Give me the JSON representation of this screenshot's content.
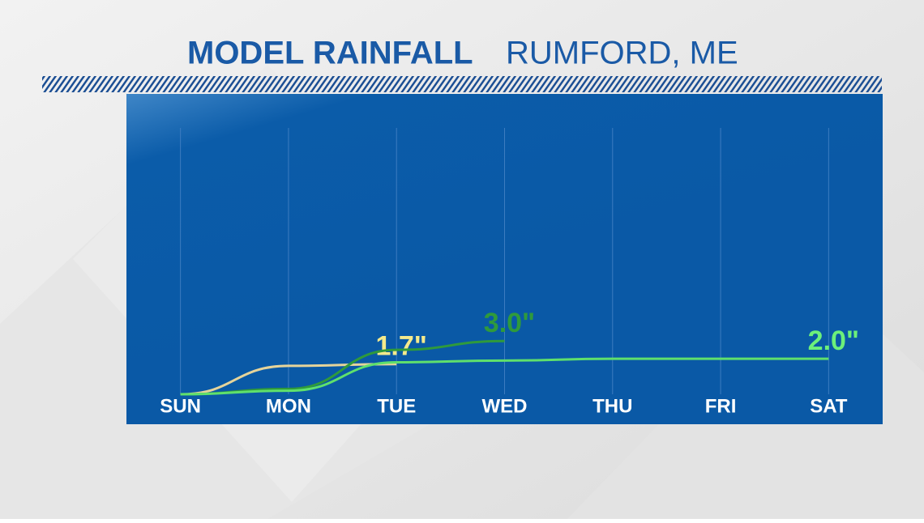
{
  "chart_data": {
    "type": "line",
    "title": "MODEL RAINFALL",
    "subtitle": "RUMFORD, ME",
    "categories": [
      "SUN",
      "MON",
      "TUE",
      "WED",
      "THU",
      "FRI",
      "SAT"
    ],
    "ylim": [
      0,
      15
    ],
    "grid": true,
    "series": [
      {
        "color": "#e6d49a",
        "label_color": "#f4ea8c",
        "values": [
          0,
          1.6,
          1.7,
          null,
          null,
          null,
          null
        ],
        "value_labels": [
          null,
          null,
          "1.7\"",
          null,
          null,
          null,
          null
        ]
      },
      {
        "color": "#2f9a3c",
        "label_color": "#2f9a3c",
        "values": [
          0,
          0.3,
          2.5,
          3.0,
          null,
          null,
          null
        ],
        "value_labels": [
          null,
          null,
          null,
          "3.0\"",
          null,
          null,
          null
        ]
      },
      {
        "color": "#5fe06c",
        "label_color": "#6cf07a",
        "values": [
          0,
          0.2,
          1.8,
          1.9,
          2.0,
          2.0,
          2.0
        ],
        "value_labels": [
          null,
          null,
          null,
          null,
          null,
          null,
          "2.0\""
        ]
      }
    ]
  }
}
